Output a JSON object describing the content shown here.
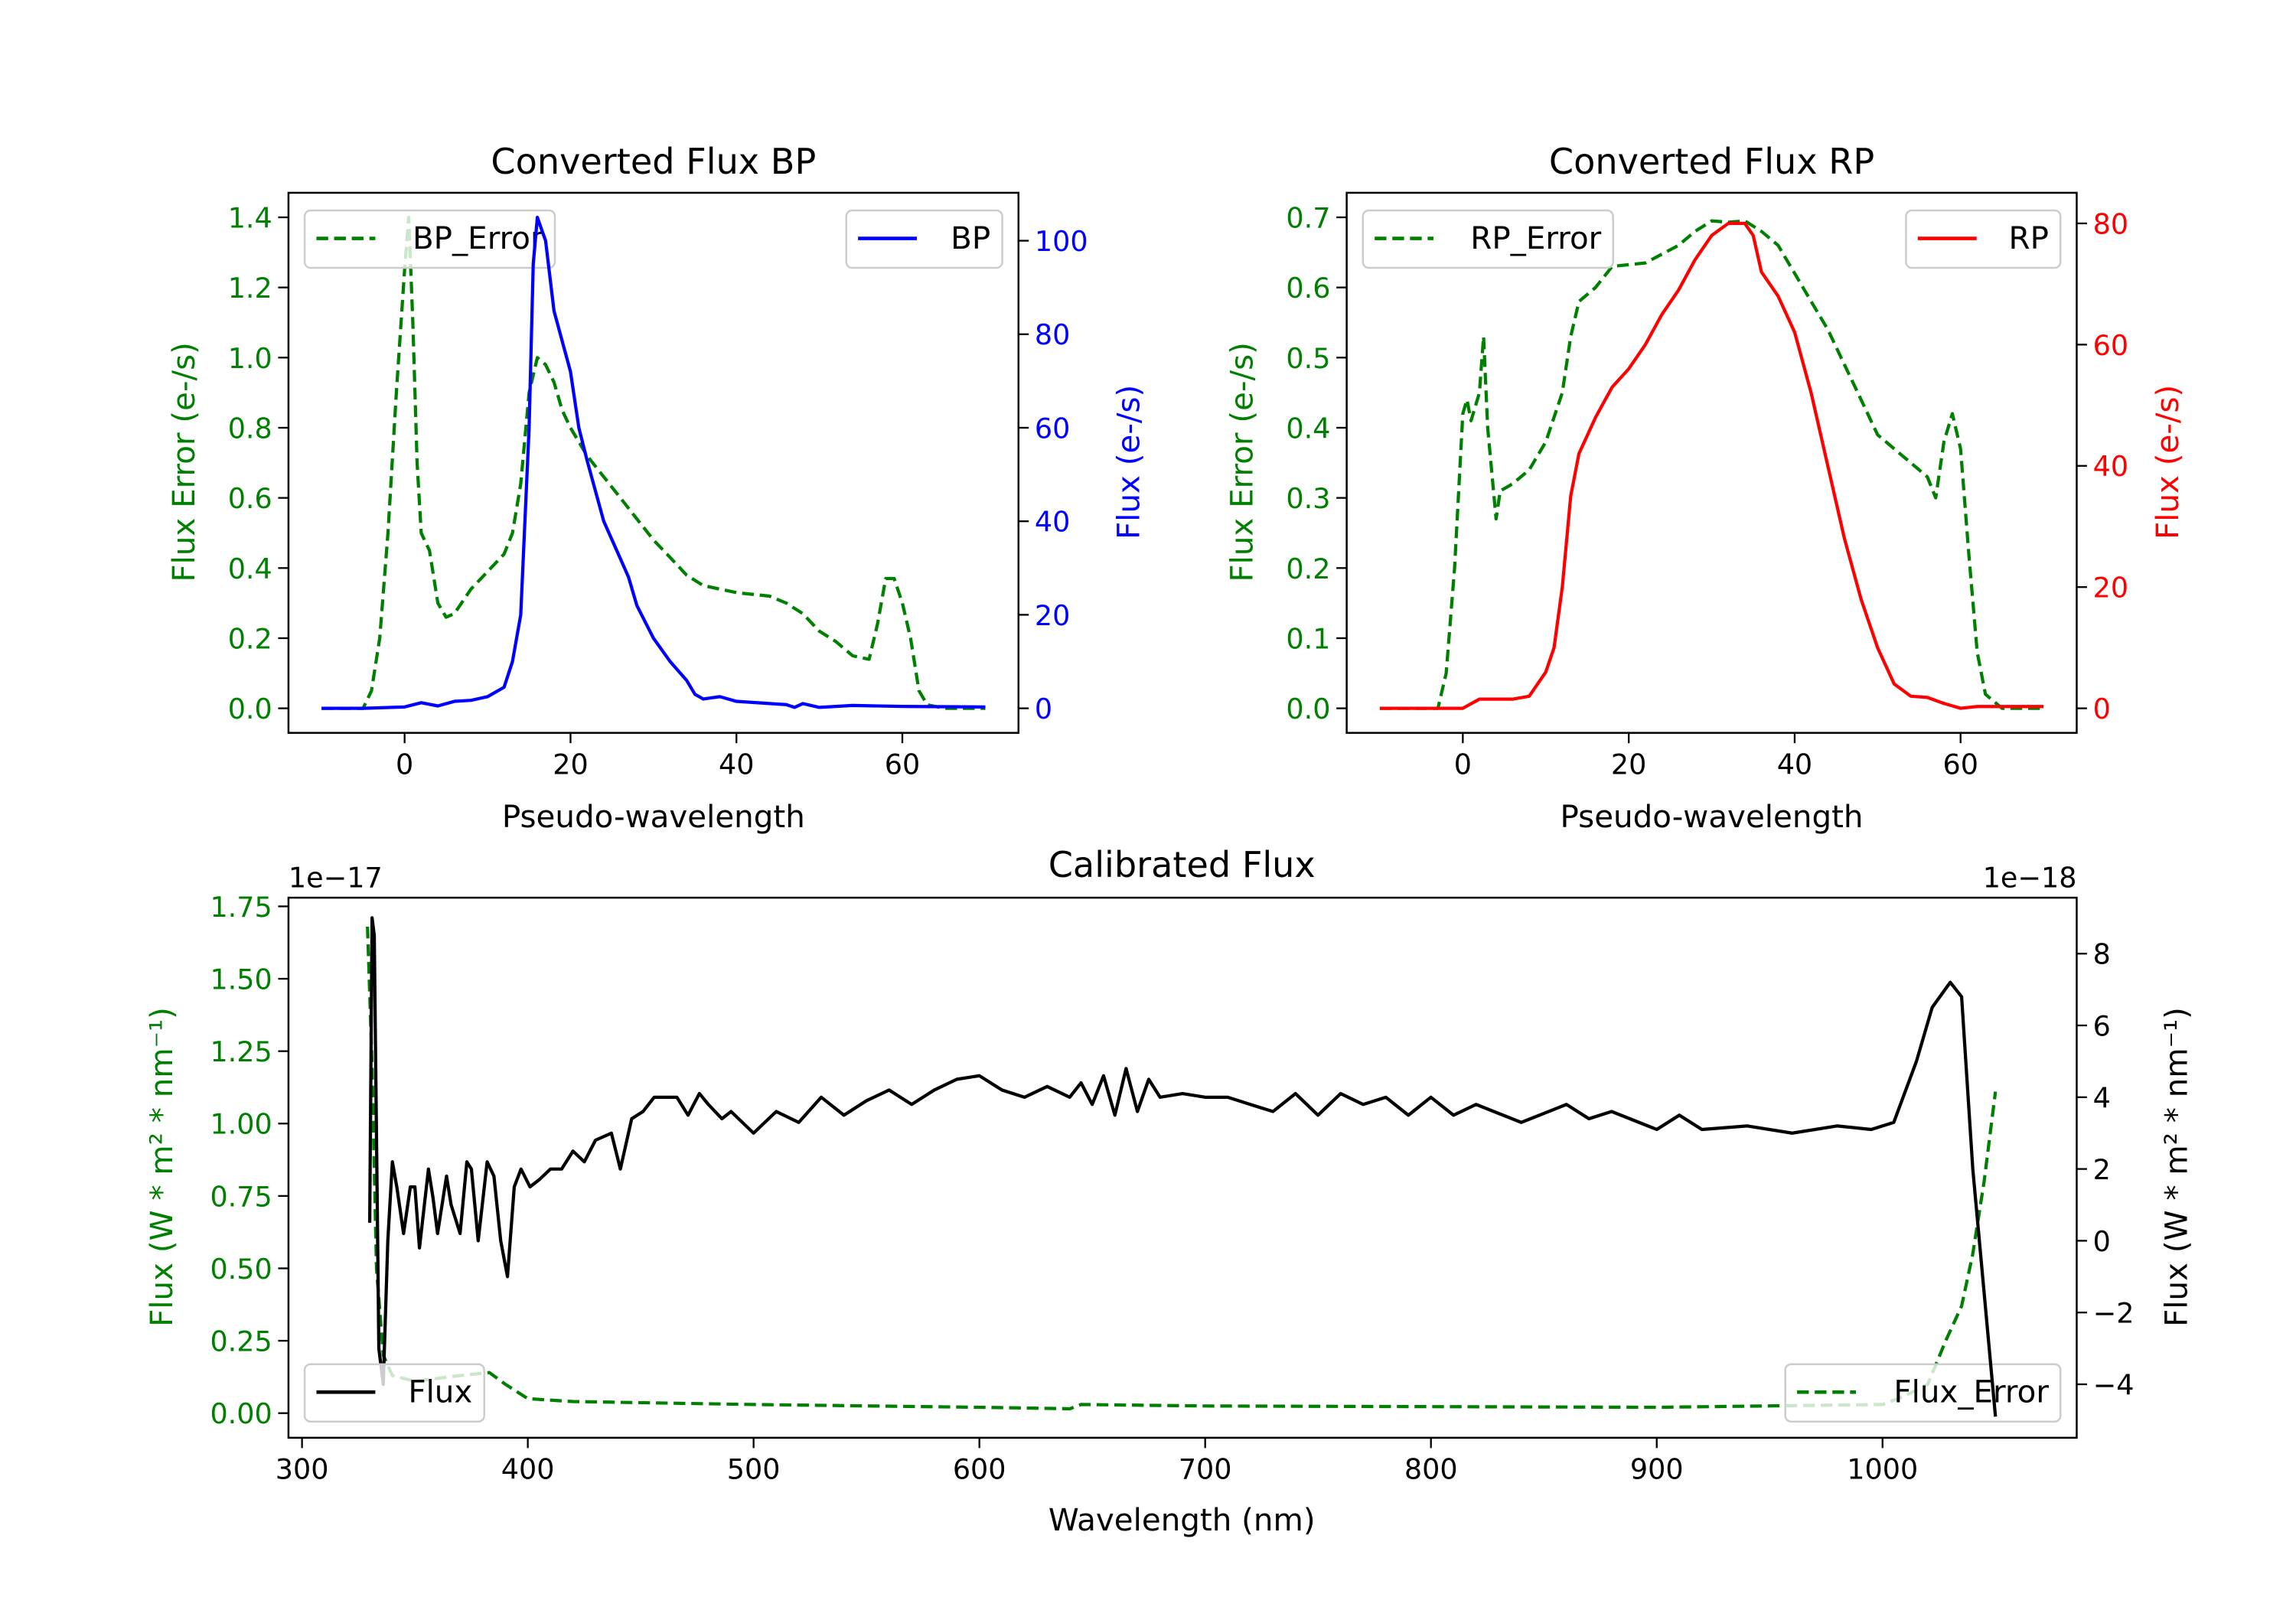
{
  "chart_data": [
    {
      "type": "line",
      "title": "Converted Flux BP",
      "xlabel": "Pseudo-wavelength",
      "ylabel_left": "Flux Error (e-/s)",
      "ylabel_right": "Flux (e-/s)",
      "xlim": [
        -14,
        74
      ],
      "ylim_left": [
        -0.07,
        1.47
      ],
      "ylim_right": [
        -5.25,
        110.25
      ],
      "x_ticks": [
        0,
        20,
        40,
        60
      ],
      "x_tick_labels": [
        "0",
        "20",
        "40",
        "60"
      ],
      "y_left_ticks": [
        0,
        0.2,
        0.4,
        0.6,
        0.8,
        1.0,
        1.2,
        1.4
      ],
      "y_left_tick_labels": [
        "0.0",
        "0.2",
        "0.4",
        "0.6",
        "0.8",
        "1.0",
        "1.2",
        "1.4"
      ],
      "y_right_ticks": [
        0,
        20,
        40,
        60,
        80,
        100
      ],
      "y_right_tick_labels": [
        "0",
        "20",
        "40",
        "60",
        "80",
        "100"
      ],
      "left_color": "#008000",
      "right_color": "#0000ff",
      "legend_left": {
        "label": "BP_Error",
        "placement": "upper-left"
      },
      "legend_right": {
        "label": "BP",
        "placement": "upper-right"
      },
      "series": [
        {
          "name": "BP_Error",
          "axis": "left",
          "color": "#008000",
          "style": "dashed",
          "x": [
            -10,
            -5,
            -4,
            -3,
            -2,
            -1,
            0,
            0.5,
            1,
            1.5,
            2,
            3,
            4,
            5,
            6,
            8,
            10,
            12,
            13,
            14,
            15,
            16,
            17,
            18,
            19,
            20,
            22,
            24,
            26,
            28,
            30,
            32,
            34,
            36,
            40,
            44,
            46,
            48,
            50,
            52,
            54,
            56,
            57,
            58,
            59,
            60,
            61,
            62,
            63,
            65,
            70
          ],
          "y": [
            0,
            0,
            0.05,
            0.2,
            0.5,
            0.9,
            1.25,
            1.4,
            1.1,
            0.7,
            0.5,
            0.45,
            0.3,
            0.26,
            0.27,
            0.34,
            0.39,
            0.44,
            0.5,
            0.64,
            0.9,
            1.0,
            0.98,
            0.93,
            0.85,
            0.8,
            0.72,
            0.66,
            0.6,
            0.54,
            0.48,
            0.43,
            0.38,
            0.35,
            0.33,
            0.32,
            0.3,
            0.27,
            0.22,
            0.19,
            0.15,
            0.14,
            0.24,
            0.37,
            0.37,
            0.3,
            0.2,
            0.05,
            0.01,
            0,
            0
          ]
        },
        {
          "name": "BP",
          "axis": "right",
          "color": "#0000ff",
          "style": "solid",
          "x": [
            -10,
            -5,
            0,
            2,
            4,
            6,
            8,
            10,
            12,
            13,
            14,
            15,
            15.5,
            16,
            17,
            18,
            20,
            21,
            22,
            24,
            26,
            27,
            28,
            30,
            32,
            34,
            35,
            36,
            38,
            40,
            44,
            46,
            47,
            48,
            50,
            54,
            60,
            70
          ],
          "y": [
            0,
            0,
            0.3,
            1.2,
            0.5,
            1.5,
            1.7,
            2.5,
            4.5,
            10,
            20,
            60,
            95,
            105,
            100,
            85,
            72,
            60,
            53,
            40,
            32,
            28,
            22,
            15,
            10,
            6,
            3,
            2,
            2.5,
            1.5,
            1,
            0.8,
            0.2,
            1,
            0.2,
            0.6,
            0.4,
            0.3
          ]
        }
      ]
    },
    {
      "type": "line",
      "title": "Converted Flux RP",
      "xlabel": "Pseudo-wavelength",
      "ylabel_left": "Flux Error (e-/s)",
      "ylabel_right": "Flux (e-/s)",
      "xlim": [
        -14,
        74
      ],
      "ylim_left": [
        -0.035,
        0.735
      ],
      "ylim_right": [
        -4.05,
        85.05
      ],
      "x_ticks": [
        0,
        20,
        40,
        60
      ],
      "x_tick_labels": [
        "0",
        "20",
        "40",
        "60"
      ],
      "y_left_ticks": [
        0,
        0.1,
        0.2,
        0.3,
        0.4,
        0.5,
        0.6,
        0.7
      ],
      "y_left_tick_labels": [
        "0.0",
        "0.1",
        "0.2",
        "0.3",
        "0.4",
        "0.5",
        "0.6",
        "0.7"
      ],
      "y_right_ticks": [
        0,
        20,
        40,
        60,
        80
      ],
      "y_right_tick_labels": [
        "0",
        "20",
        "40",
        "60",
        "80"
      ],
      "left_color": "#008000",
      "right_color": "#ff0000",
      "legend_left": {
        "label": "RP_Error",
        "placement": "upper-left"
      },
      "legend_right": {
        "label": "RP",
        "placement": "upper-right"
      },
      "series": [
        {
          "name": "RP_Error",
          "axis": "left",
          "color": "#008000",
          "style": "dashed",
          "x": [
            -10,
            -3,
            -2,
            -1,
            0,
            0.5,
            1,
            2,
            2.5,
            3,
            4,
            4.5,
            6,
            8,
            10,
            12,
            13,
            14,
            16,
            18,
            22,
            26,
            28,
            30,
            32,
            34,
            36,
            38,
            40,
            42,
            44,
            46,
            48,
            50,
            52,
            54,
            56,
            57,
            58,
            59,
            60,
            61,
            62,
            63,
            65,
            70
          ],
          "y": [
            0,
            0,
            0.05,
            0.2,
            0.42,
            0.44,
            0.41,
            0.45,
            0.53,
            0.4,
            0.27,
            0.31,
            0.32,
            0.34,
            0.38,
            0.45,
            0.53,
            0.58,
            0.6,
            0.63,
            0.635,
            0.66,
            0.68,
            0.695,
            0.693,
            0.695,
            0.68,
            0.66,
            0.62,
            0.58,
            0.54,
            0.49,
            0.44,
            0.39,
            0.37,
            0.35,
            0.33,
            0.3,
            0.38,
            0.42,
            0.37,
            0.22,
            0.08,
            0.02,
            0,
            0
          ]
        },
        {
          "name": "RP",
          "axis": "right",
          "color": "#ff0000",
          "style": "solid",
          "x": [
            -10,
            -3,
            0,
            2,
            4,
            6,
            8,
            10,
            11,
            12,
            13,
            14,
            16,
            18,
            20,
            22,
            24,
            26,
            28,
            30,
            31,
            32,
            33,
            34,
            35,
            36,
            38,
            40,
            42,
            44,
            46,
            48,
            50,
            52,
            54,
            56,
            58,
            60,
            62,
            70
          ],
          "y": [
            0,
            0,
            0,
            1.5,
            1.5,
            1.5,
            2,
            6,
            10,
            20,
            35,
            42,
            48,
            53,
            56,
            60,
            65,
            69,
            74,
            78,
            79,
            80,
            80,
            80,
            78,
            72,
            68,
            62,
            52,
            40,
            28,
            18,
            10,
            4,
            2,
            1.8,
            0.8,
            0,
            0.3,
            0.3
          ]
        }
      ]
    },
    {
      "type": "line",
      "title": "Calibrated Flux",
      "xlabel": "Wavelength (nm)",
      "ylabel_left": "Flux (W * m² * nm⁻¹)",
      "ylabel_right": "Flux (W * m² * nm⁻¹)",
      "offset_left": "1e−17",
      "offset_right": "1e−18",
      "xlim": [
        294,
        1086
      ],
      "ylim_left": [
        -0.085,
        1.78
      ],
      "ylim_right": [
        -5.49,
        9.56
      ],
      "x_ticks": [
        300,
        400,
        500,
        600,
        700,
        800,
        900,
        1000
      ],
      "x_tick_labels": [
        "300",
        "400",
        "500",
        "600",
        "700",
        "800",
        "900",
        "1000"
      ],
      "y_left_ticks": [
        0,
        0.25,
        0.5,
        0.75,
        1.0,
        1.25,
        1.5,
        1.75
      ],
      "y_left_tick_labels": [
        "0.00",
        "0.25",
        "0.50",
        "0.75",
        "1.00",
        "1.25",
        "1.50",
        "1.75"
      ],
      "y_right_ticks": [
        -4,
        -2,
        0,
        2,
        4,
        6,
        8
      ],
      "y_right_tick_labels": [
        "−4",
        "−2",
        "0",
        "2",
        "4",
        "6",
        "8"
      ],
      "left_color": "#008000",
      "right_color": "#000000",
      "legend_left": {
        "label": "Flux_Error",
        "placement": "lower-right"
      },
      "legend_right": {
        "label": "Flux",
        "placement": "lower-left"
      },
      "series": [
        {
          "name": "Flux_Error",
          "axis": "left",
          "color": "#008000",
          "style": "dashed",
          "x": [
            329,
            331,
            333,
            336,
            340,
            350,
            370,
            383,
            390,
            400,
            420,
            500,
            600,
            640,
            645,
            700,
            900,
            1000,
            1010,
            1020,
            1028,
            1035,
            1040,
            1045,
            1050
          ],
          "y": [
            1.68,
            1.2,
            0.5,
            0.2,
            0.13,
            0.11,
            0.13,
            0.14,
            0.1,
            0.05,
            0.04,
            0.03,
            0.02,
            0.015,
            0.03,
            0.025,
            0.02,
            0.03,
            0.06,
            0.1,
            0.25,
            0.37,
            0.55,
            0.8,
            1.11
          ]
        },
        {
          "name": "Flux",
          "axis": "right",
          "color": "#000000",
          "style": "solid",
          "x": [
            330,
            331,
            332,
            334,
            336,
            338,
            340,
            342,
            345,
            348,
            350,
            352,
            356,
            358,
            360,
            364,
            366,
            370,
            373,
            375,
            378,
            382,
            385,
            388,
            391,
            394,
            397,
            401,
            405,
            410,
            415,
            420,
            425,
            430,
            437,
            441,
            446,
            451,
            456,
            462,
            466,
            471,
            476,
            480,
            486,
            490,
            500,
            510,
            520,
            530,
            540,
            550,
            560,
            570,
            580,
            590,
            600,
            610,
            620,
            630,
            640,
            645,
            650,
            655,
            660,
            665,
            670,
            675,
            680,
            690,
            700,
            710,
            720,
            730,
            740,
            750,
            760,
            770,
            780,
            790,
            800,
            810,
            820,
            840,
            860,
            870,
            880,
            900,
            910,
            920,
            940,
            960,
            980,
            995,
            1005,
            1015,
            1022,
            1030,
            1035,
            1040,
            1050
          ],
          "y": [
            0.5,
            9,
            8.5,
            -3,
            -4,
            0,
            2.2,
            1.5,
            0.2,
            1.5,
            1.5,
            -0.2,
            2.0,
            1.2,
            0.2,
            1.8,
            1.0,
            0.2,
            2.2,
            2.0,
            0,
            2.2,
            1.8,
            0,
            -1,
            1.5,
            2.0,
            1.5,
            1.7,
            2.0,
            2.0,
            2.5,
            2.2,
            2.8,
            3.0,
            2.0,
            3.4,
            3.6,
            4.0,
            4.0,
            4.0,
            3.5,
            4.1,
            3.8,
            3.4,
            3.6,
            3.0,
            3.6,
            3.3,
            4.0,
            3.5,
            3.9,
            4.2,
            3.8,
            4.2,
            4.5,
            4.6,
            4.2,
            4.0,
            4.3,
            4.0,
            4.4,
            3.8,
            4.6,
            3.5,
            4.8,
            3.6,
            4.5,
            4.0,
            4.1,
            4.0,
            4.0,
            3.8,
            3.6,
            4.1,
            3.5,
            4.1,
            3.8,
            4.0,
            3.5,
            4.0,
            3.5,
            3.8,
            3.3,
            3.8,
            3.4,
            3.6,
            3.1,
            3.5,
            3.1,
            3.2,
            3.0,
            3.2,
            3.1,
            3.3,
            5,
            6.5,
            7.2,
            6.8,
            2,
            -4.9
          ]
        }
      ]
    }
  ]
}
